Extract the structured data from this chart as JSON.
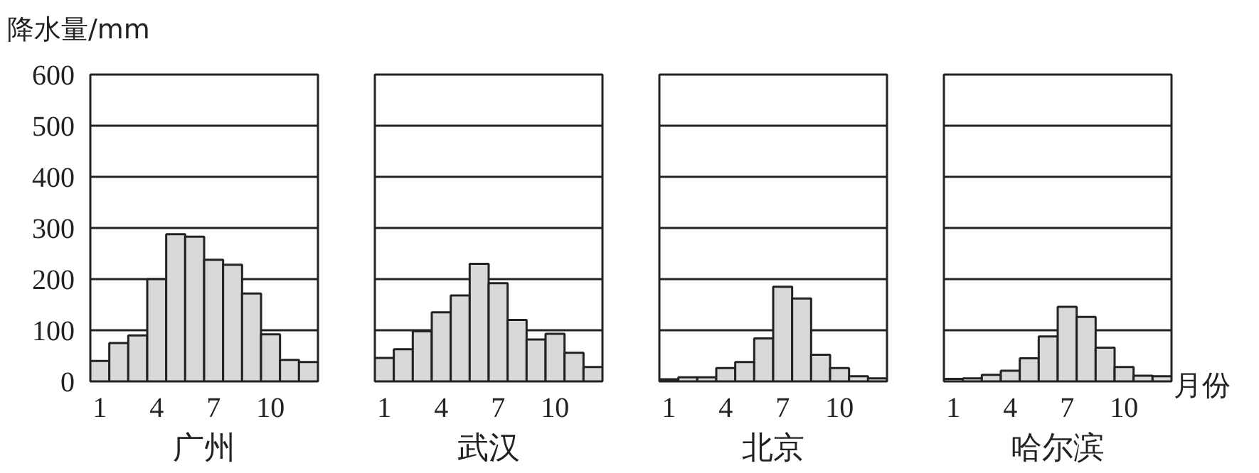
{
  "chart_data": [
    {
      "type": "bar",
      "title": "广州",
      "ylabel": "降水量/mm",
      "x": [
        1,
        2,
        3,
        4,
        5,
        6,
        7,
        8,
        9,
        10,
        11,
        12
      ],
      "values": [
        40,
        75,
        90,
        200,
        288,
        283,
        238,
        228,
        172,
        92,
        42,
        38
      ],
      "color": "#d9d9d9",
      "xlim": [
        0.5,
        12.5
      ],
      "xticks": [
        1,
        4,
        7,
        10
      ],
      "ylim": [
        0,
        600
      ],
      "yticks": [
        0,
        100,
        200,
        300,
        400,
        500,
        600
      ],
      "grid": "y"
    },
    {
      "type": "bar",
      "title": "武汉",
      "x": [
        1,
        2,
        3,
        4,
        5,
        6,
        7,
        8,
        9,
        10,
        11,
        12
      ],
      "values": [
        46,
        63,
        98,
        135,
        168,
        230,
        192,
        120,
        82,
        93,
        56,
        28
      ],
      "color": "#d9d9d9",
      "xlim": [
        0.5,
        12.5
      ],
      "xticks": [
        1,
        4,
        7,
        10
      ],
      "ylim": [
        0,
        600
      ],
      "yticks": [
        0,
        100,
        200,
        300,
        400,
        500,
        600
      ],
      "grid": "y",
      "tick_labels": "x"
    },
    {
      "type": "bar",
      "title": "北京",
      "x": [
        1,
        2,
        3,
        4,
        5,
        6,
        7,
        8,
        9,
        10,
        11,
        12
      ],
      "values": [
        4,
        8,
        8,
        26,
        38,
        84,
        185,
        162,
        52,
        26,
        10,
        6
      ],
      "color": "#d9d9d9",
      "xlim": [
        0.5,
        12.5
      ],
      "xticks": [
        1,
        4,
        7,
        10
      ],
      "ylim": [
        0,
        600
      ],
      "yticks": [
        0,
        100,
        200,
        300,
        400,
        500,
        600
      ],
      "grid": "y",
      "tick_labels": "x"
    },
    {
      "type": "bar",
      "title": "哈尔滨",
      "xlabel": "月份",
      "x": [
        1,
        2,
        3,
        4,
        5,
        6,
        7,
        8,
        9,
        10,
        11,
        12
      ],
      "values": [
        5,
        6,
        13,
        21,
        45,
        88,
        146,
        126,
        66,
        28,
        11,
        10
      ],
      "color": "#d9d9d9",
      "xlim": [
        0.5,
        12.5
      ],
      "xticks": [
        1,
        4,
        7,
        10
      ],
      "ylim": [
        0,
        600
      ],
      "yticks": [
        0,
        100,
        200,
        300,
        400,
        500,
        600
      ],
      "grid": "y",
      "tick_labels": "x"
    }
  ]
}
